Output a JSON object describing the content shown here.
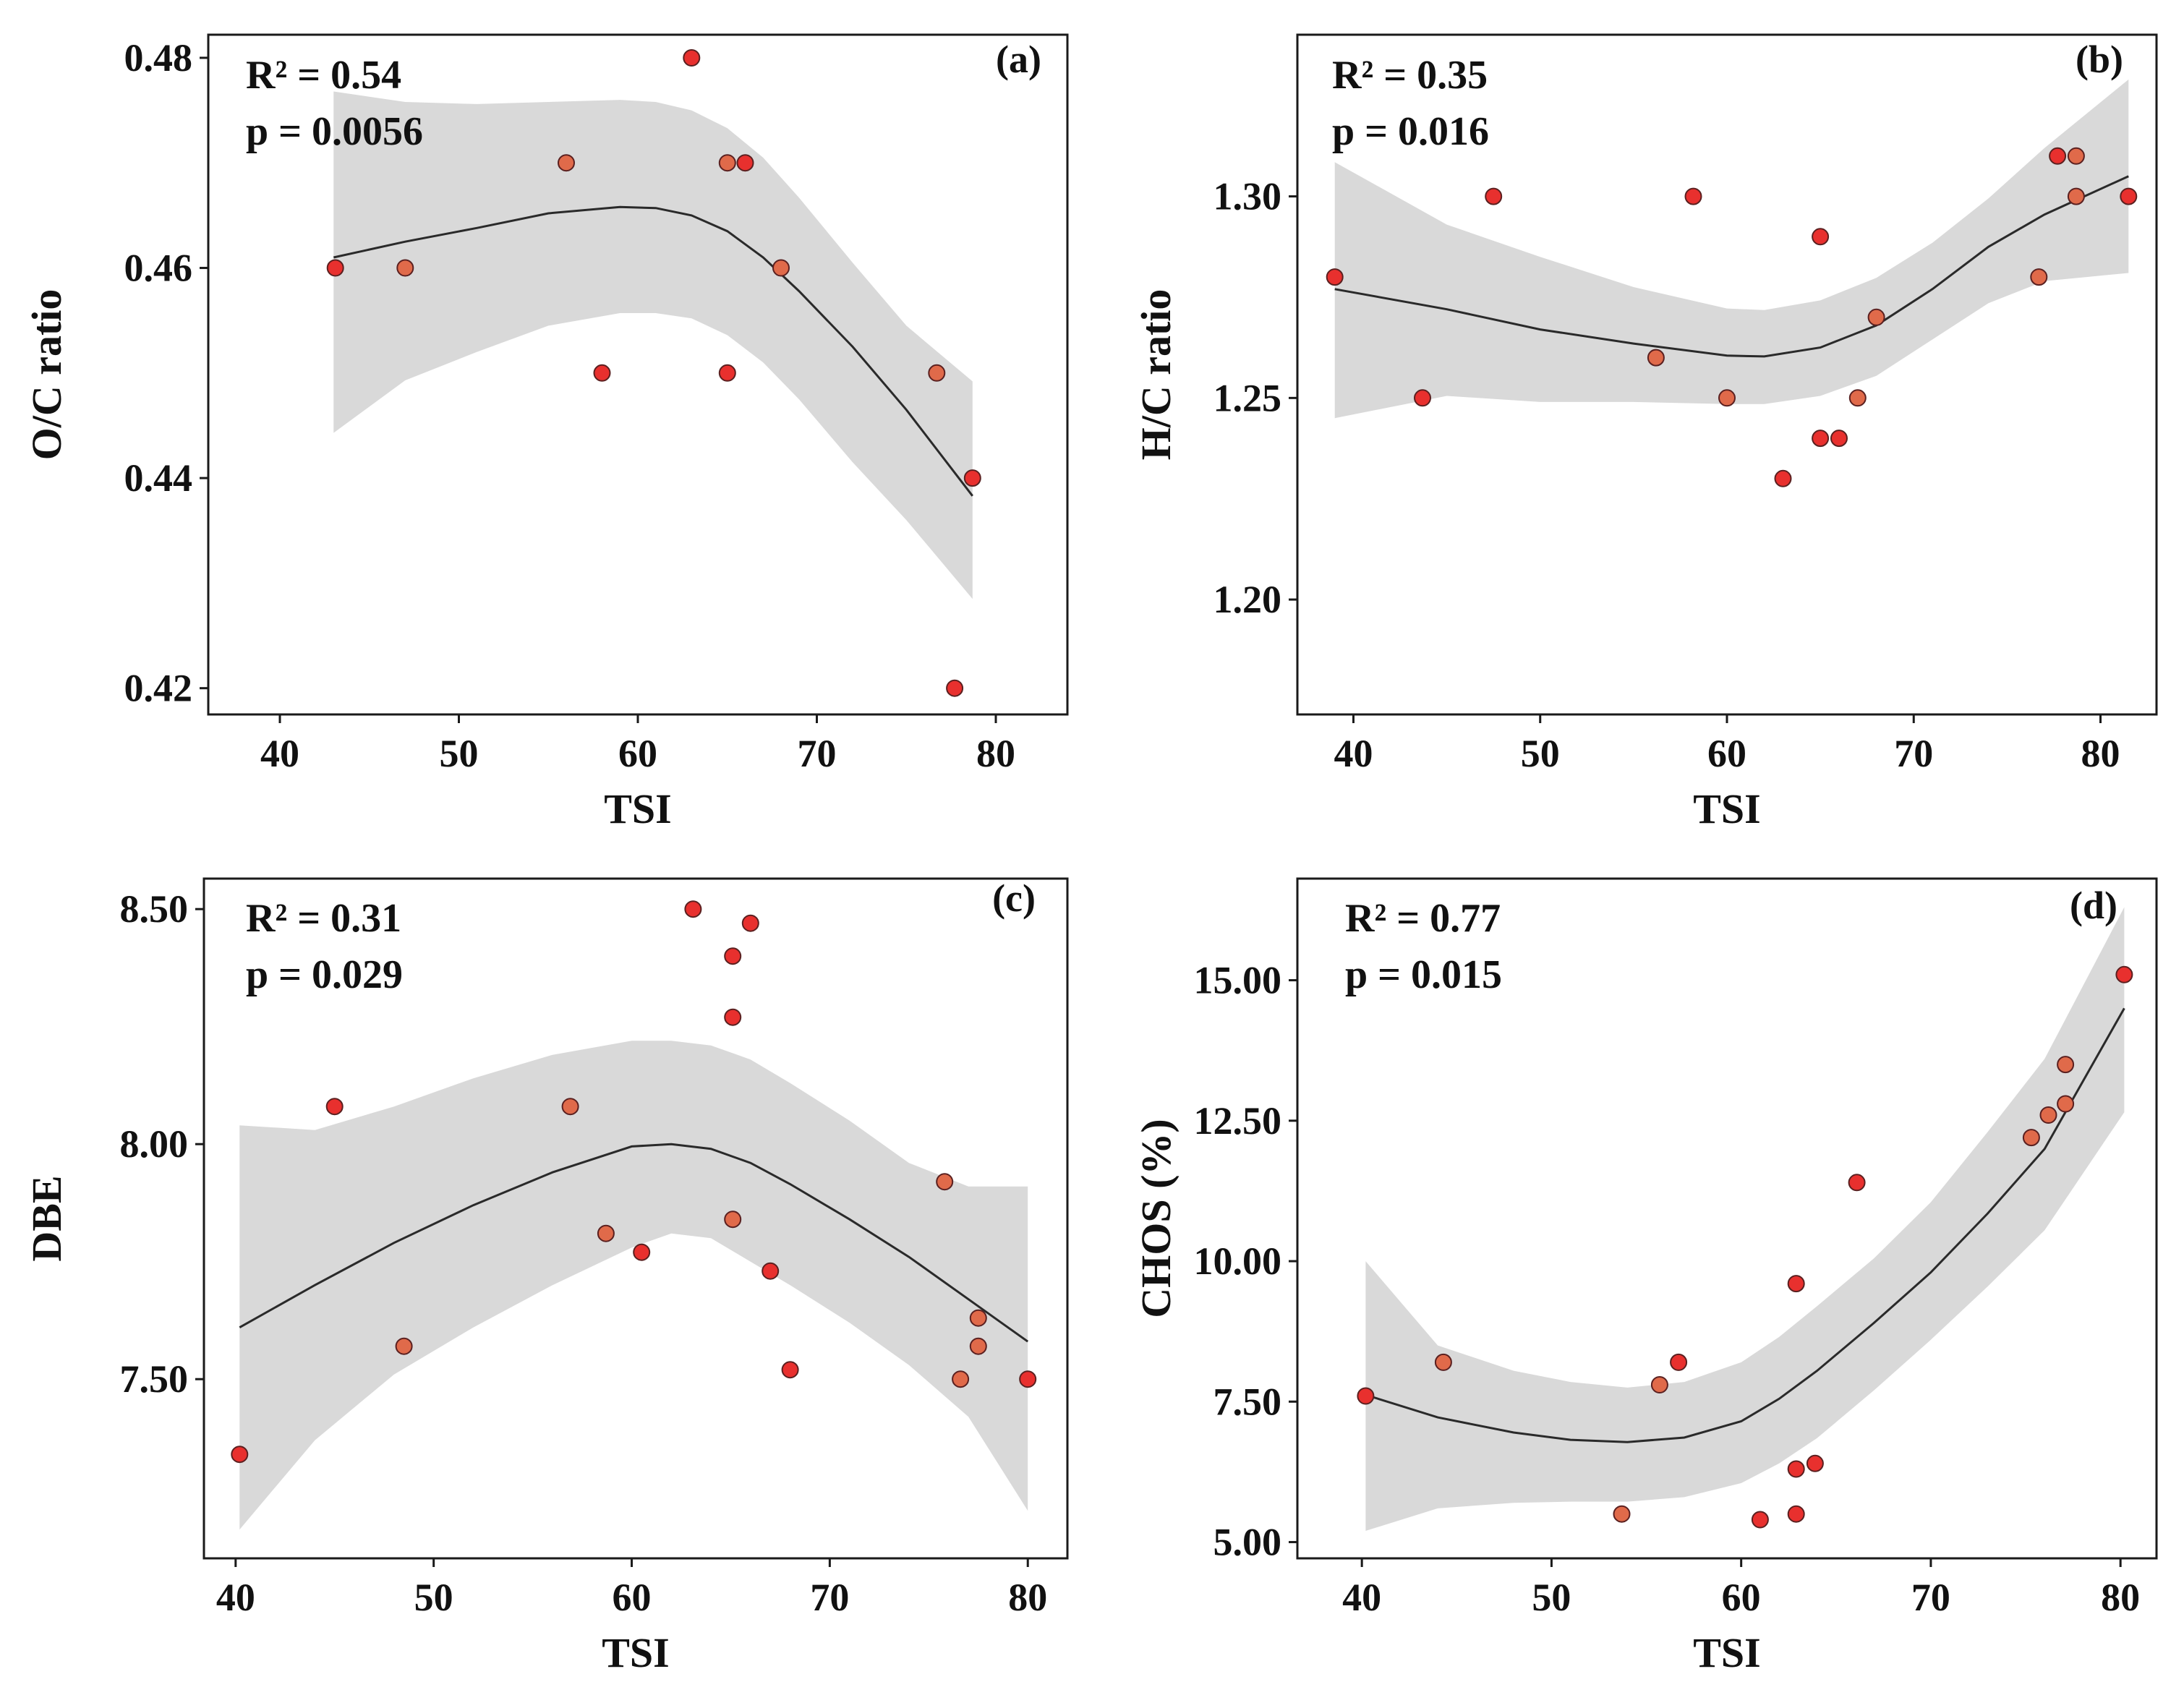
{
  "colors": {
    "band": "#d9d9d9",
    "line": "#2a2a2a",
    "point_red": "#e8302e",
    "point_orange": "#e06a4a"
  },
  "chart_data": [
    {
      "type": "scatter",
      "panel": "(a)",
      "xlabel": "TSI",
      "ylabel": "O/C ratio",
      "xlim": [
        36,
        84
      ],
      "ylim": [
        0.4175,
        0.4822
      ],
      "xticks": [
        40,
        50,
        60,
        70,
        80
      ],
      "yticks": [
        0.42,
        0.44,
        0.46,
        0.48
      ],
      "ytick_labels": [
        "0.42",
        "0.44",
        "0.46",
        "0.48"
      ],
      "stats": {
        "r2": "R² = 0.54",
        "p": "p = 0.0056"
      },
      "points": [
        {
          "x": 43.1,
          "y": 0.46,
          "c": "red"
        },
        {
          "x": 47.0,
          "y": 0.46,
          "c": "orange"
        },
        {
          "x": 56.0,
          "y": 0.47,
          "c": "orange"
        },
        {
          "x": 58.0,
          "y": 0.45,
          "c": "red"
        },
        {
          "x": 63.0,
          "y": 0.48,
          "c": "red"
        },
        {
          "x": 65.0,
          "y": 0.47,
          "c": "orange"
        },
        {
          "x": 65.0,
          "y": 0.45,
          "c": "red"
        },
        {
          "x": 66.0,
          "y": 0.47,
          "c": "red"
        },
        {
          "x": 68.0,
          "y": 0.46,
          "c": "orange"
        },
        {
          "x": 76.7,
          "y": 0.45,
          "c": "orange"
        },
        {
          "x": 77.7,
          "y": 0.42,
          "c": "red"
        },
        {
          "x": 78.7,
          "y": 0.44,
          "c": "red"
        }
      ],
      "fit": {
        "x": [
          43,
          47,
          51,
          55,
          59,
          61,
          63,
          65,
          67,
          69,
          72,
          75,
          78.7
        ],
        "y": [
          0.461,
          0.4625,
          0.4638,
          0.4652,
          0.4658,
          0.4657,
          0.465,
          0.4635,
          0.461,
          0.4578,
          0.4525,
          0.4465,
          0.4383
        ]
      },
      "ci_upper": {
        "x": [
          43,
          47,
          51,
          55,
          59,
          61,
          63,
          65,
          67,
          69,
          72,
          75,
          78.7
        ],
        "y": [
          0.4768,
          0.4758,
          0.4756,
          0.4758,
          0.476,
          0.4758,
          0.475,
          0.4733,
          0.4705,
          0.4667,
          0.4605,
          0.4545,
          0.4492
        ]
      },
      "ci_lower": {
        "x": [
          43,
          47,
          51,
          55,
          59,
          61,
          63,
          65,
          67,
          69,
          72,
          75,
          78.7
        ],
        "y": [
          0.4443,
          0.4493,
          0.452,
          0.4545,
          0.4557,
          0.4557,
          0.4552,
          0.4536,
          0.451,
          0.4475,
          0.4415,
          0.436,
          0.4285
        ]
      }
    },
    {
      "type": "scatter",
      "panel": "(b)",
      "xlabel": "TSI",
      "ylabel": "H/C ratio",
      "xlim": [
        37,
        83
      ],
      "ylim": [
        1.1715,
        1.3401
      ],
      "xticks": [
        40,
        50,
        60,
        70,
        80
      ],
      "yticks": [
        1.2,
        1.25,
        1.3
      ],
      "ytick_labels": [
        "1.20",
        "1.25",
        "1.30"
      ],
      "stats": {
        "r2": "R² = 0.35",
        "p": "p = 0.016"
      },
      "points": [
        {
          "x": 39.0,
          "y": 1.28,
          "c": "red"
        },
        {
          "x": 43.7,
          "y": 1.25,
          "c": "red"
        },
        {
          "x": 47.5,
          "y": 1.3,
          "c": "red"
        },
        {
          "x": 56.2,
          "y": 1.26,
          "c": "orange"
        },
        {
          "x": 58.2,
          "y": 1.3,
          "c": "red"
        },
        {
          "x": 60.0,
          "y": 1.25,
          "c": "orange"
        },
        {
          "x": 63.0,
          "y": 1.23,
          "c": "red"
        },
        {
          "x": 65.0,
          "y": 1.29,
          "c": "red"
        },
        {
          "x": 65.0,
          "y": 1.24,
          "c": "red"
        },
        {
          "x": 66.0,
          "y": 1.24,
          "c": "red"
        },
        {
          "x": 67.0,
          "y": 1.25,
          "c": "orange"
        },
        {
          "x": 68.0,
          "y": 1.27,
          "c": "orange"
        },
        {
          "x": 76.7,
          "y": 1.28,
          "c": "orange"
        },
        {
          "x": 77.7,
          "y": 1.31,
          "c": "red"
        },
        {
          "x": 78.7,
          "y": 1.31,
          "c": "orange"
        },
        {
          "x": 78.7,
          "y": 1.3,
          "c": "orange"
        },
        {
          "x": 81.5,
          "y": 1.3,
          "c": "red"
        }
      ],
      "fit": {
        "x": [
          39,
          45,
          50,
          55,
          60,
          62,
          65,
          68,
          71,
          74,
          77,
          81.5
        ],
        "y": [
          1.277,
          1.272,
          1.267,
          1.2635,
          1.2605,
          1.2603,
          1.2625,
          1.268,
          1.277,
          1.2875,
          1.2955,
          1.305
        ]
      },
      "ci_upper": {
        "x": [
          39,
          45,
          50,
          55,
          60,
          62,
          65,
          68,
          71,
          74,
          77,
          81.5
        ],
        "y": [
          1.3085,
          1.293,
          1.285,
          1.2775,
          1.2722,
          1.2718,
          1.2742,
          1.2798,
          1.2885,
          1.2995,
          1.312,
          1.329
        ]
      },
      "ci_lower": {
        "x": [
          39,
          45,
          50,
          55,
          60,
          62,
          65,
          68,
          71,
          74,
          77,
          81.5
        ],
        "y": [
          1.245,
          1.2505,
          1.249,
          1.249,
          1.2485,
          1.2485,
          1.2505,
          1.2555,
          1.2645,
          1.2735,
          1.279,
          1.281
        ]
      }
    },
    {
      "type": "scatter",
      "panel": "(c)",
      "xlabel": "TSI",
      "ylabel": "DBE",
      "xlim": [
        38.4,
        82
      ],
      "ylim": [
        7.1188,
        8.5649
      ],
      "xticks": [
        40,
        50,
        60,
        70,
        80
      ],
      "yticks": [
        7.5,
        8.0,
        8.5
      ],
      "ytick_labels": [
        "7.50",
        "8.00",
        "8.50"
      ],
      "stats": {
        "r2": "R² = 0.31",
        "p": "p = 0.029"
      },
      "points": [
        {
          "x": 40.2,
          "y": 7.34,
          "c": "red"
        },
        {
          "x": 45.0,
          "y": 8.08,
          "c": "red"
        },
        {
          "x": 48.5,
          "y": 7.57,
          "c": "orange"
        },
        {
          "x": 56.9,
          "y": 8.08,
          "c": "orange"
        },
        {
          "x": 58.7,
          "y": 7.81,
          "c": "orange"
        },
        {
          "x": 60.5,
          "y": 7.77,
          "c": "red"
        },
        {
          "x": 63.1,
          "y": 8.5,
          "c": "red"
        },
        {
          "x": 65.1,
          "y": 8.4,
          "c": "red"
        },
        {
          "x": 65.1,
          "y": 8.27,
          "c": "red"
        },
        {
          "x": 65.1,
          "y": 7.84,
          "c": "orange"
        },
        {
          "x": 66.0,
          "y": 8.47,
          "c": "red"
        },
        {
          "x": 67.0,
          "y": 7.73,
          "c": "red"
        },
        {
          "x": 68.0,
          "y": 7.52,
          "c": "red"
        },
        {
          "x": 75.8,
          "y": 7.92,
          "c": "orange"
        },
        {
          "x": 76.6,
          "y": 7.5,
          "c": "orange"
        },
        {
          "x": 77.5,
          "y": 7.63,
          "c": "orange"
        },
        {
          "x": 77.5,
          "y": 7.57,
          "c": "orange"
        },
        {
          "x": 80.0,
          "y": 7.5,
          "c": "red"
        }
      ],
      "fit": {
        "x": [
          40.2,
          44,
          48,
          52,
          56,
          60,
          62,
          64,
          66,
          68,
          71,
          74,
          77,
          80
        ],
        "y": [
          7.61,
          7.7,
          7.79,
          7.87,
          7.94,
          7.995,
          8.0,
          7.99,
          7.96,
          7.915,
          7.84,
          7.76,
          7.67,
          7.58
        ]
      },
      "ci_upper": {
        "x": [
          40.2,
          44,
          48,
          52,
          56,
          60,
          62,
          64,
          66,
          68,
          71,
          74,
          77,
          80
        ],
        "y": [
          8.04,
          8.03,
          8.08,
          8.14,
          8.19,
          8.22,
          8.22,
          8.21,
          8.18,
          8.13,
          8.05,
          7.96,
          7.91,
          7.91
        ]
      },
      "ci_lower": {
        "x": [
          40.2,
          44,
          48,
          52,
          56,
          60,
          62,
          64,
          66,
          68,
          71,
          74,
          77,
          80
        ],
        "y": [
          7.18,
          7.37,
          7.51,
          7.61,
          7.7,
          7.78,
          7.81,
          7.8,
          7.75,
          7.7,
          7.62,
          7.53,
          7.42,
          7.22
        ]
      }
    },
    {
      "type": "scatter",
      "panel": "(d)",
      "xlabel": "TSI",
      "ylabel": "CHOS (%)",
      "xlim": [
        36.6,
        81.9
      ],
      "ylim": [
        4.711,
        16.809
      ],
      "xticks": [
        40,
        50,
        60,
        70,
        80
      ],
      "yticks": [
        5.0,
        7.5,
        10.0,
        12.5,
        15.0
      ],
      "ytick_labels": [
        "5.00",
        "7.50",
        "10.00",
        "12.50",
        "15.00"
      ],
      "stats": {
        "r2": "R² = 0.77",
        "p": "p = 0.015"
      },
      "points": [
        {
          "x": 40.2,
          "y": 7.6,
          "c": "red"
        },
        {
          "x": 44.3,
          "y": 8.2,
          "c": "orange"
        },
        {
          "x": 53.7,
          "y": 5.5,
          "c": "orange"
        },
        {
          "x": 55.7,
          "y": 7.8,
          "c": "orange"
        },
        {
          "x": 56.7,
          "y": 8.2,
          "c": "red"
        },
        {
          "x": 61.0,
          "y": 5.4,
          "c": "red"
        },
        {
          "x": 62.9,
          "y": 9.6,
          "c": "red"
        },
        {
          "x": 62.9,
          "y": 6.3,
          "c": "red"
        },
        {
          "x": 62.9,
          "y": 5.5,
          "c": "red"
        },
        {
          "x": 63.9,
          "y": 6.4,
          "c": "red"
        },
        {
          "x": 66.1,
          "y": 11.4,
          "c": "red"
        },
        {
          "x": 75.3,
          "y": 12.2,
          "c": "orange"
        },
        {
          "x": 76.2,
          "y": 12.6,
          "c": "orange"
        },
        {
          "x": 77.1,
          "y": 13.5,
          "c": "orange"
        },
        {
          "x": 77.1,
          "y": 12.8,
          "c": "orange"
        },
        {
          "x": 80.2,
          "y": 15.1,
          "c": "red"
        }
      ],
      "fit": {
        "x": [
          40.2,
          44,
          48,
          51,
          54,
          57,
          60,
          62,
          64,
          67,
          70,
          73,
          76,
          80.2
        ],
        "y": [
          7.62,
          7.22,
          6.95,
          6.82,
          6.78,
          6.86,
          7.15,
          7.55,
          8.05,
          8.9,
          9.8,
          10.85,
          12.0,
          14.5
        ]
      },
      "ci_upper": {
        "x": [
          40.2,
          44,
          48,
          51,
          54,
          57,
          60,
          62,
          64,
          67,
          70,
          73,
          76,
          80.2
        ],
        "y": [
          10.0,
          8.5,
          8.05,
          7.85,
          7.75,
          7.85,
          8.2,
          8.65,
          9.2,
          10.05,
          11.05,
          12.3,
          13.6,
          16.3
        ]
      },
      "ci_lower": {
        "x": [
          40.2,
          44,
          48,
          51,
          54,
          57,
          60,
          62,
          64,
          67,
          70,
          73,
          76,
          80.2
        ],
        "y": [
          5.2,
          5.6,
          5.7,
          5.72,
          5.72,
          5.8,
          6.05,
          6.4,
          6.85,
          7.7,
          8.6,
          9.55,
          10.55,
          12.65
        ]
      }
    }
  ]
}
